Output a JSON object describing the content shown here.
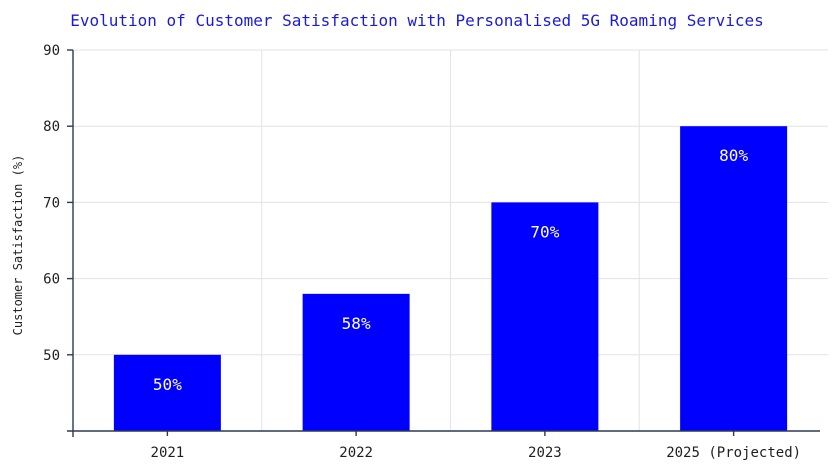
{
  "chart_data": {
    "type": "bar",
    "title": "Evolution of Customer Satisfaction with Personalised 5G Roaming Services",
    "xlabel": "",
    "ylabel": "Customer Satisfaction (%)",
    "categories": [
      "2021",
      "2022",
      "2023",
      "2025 (Projected)"
    ],
    "values": [
      50,
      58,
      70,
      80
    ],
    "data_labels": [
      "50%",
      "58%",
      "70%",
      "80%"
    ],
    "ylim": [
      40,
      90
    ],
    "yticks": [
      50,
      60,
      70,
      80,
      90
    ],
    "grid": true,
    "bar_color": "#0000ff",
    "title_color": "#1a1adb"
  }
}
